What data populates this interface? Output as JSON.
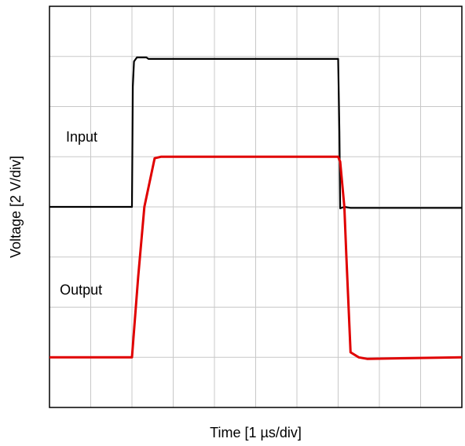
{
  "chart_data": {
    "type": "line",
    "title": "",
    "xlabel": "Time [1 µs/div]",
    "ylabel": "Voltage [2 V/div]",
    "x_unit": "div",
    "y_unit": "div",
    "xlim": [
      0,
      10
    ],
    "ylim": [
      0,
      8
    ],
    "grid": true,
    "grid_divisions": {
      "x": 10,
      "y": 8
    },
    "series": [
      {
        "name": "Input",
        "color": "#000000",
        "points": [
          [
            0,
            4.0
          ],
          [
            2.0,
            4.0
          ],
          [
            2.02,
            6.4
          ],
          [
            2.05,
            6.9
          ],
          [
            2.12,
            6.98
          ],
          [
            2.35,
            6.98
          ],
          [
            2.4,
            6.95
          ],
          [
            4.5,
            6.95
          ],
          [
            6.0,
            6.95
          ],
          [
            7.0,
            6.95
          ],
          [
            7.03,
            5.5
          ],
          [
            7.05,
            3.97
          ],
          [
            7.15,
            4.0
          ],
          [
            7.3,
            3.98
          ],
          [
            10,
            3.98
          ]
        ]
      },
      {
        "name": "Output",
        "color": "#e00000",
        "points": [
          [
            0,
            1.0
          ],
          [
            2.0,
            1.0
          ],
          [
            2.15,
            2.6
          ],
          [
            2.3,
            4.0
          ],
          [
            2.55,
            4.97
          ],
          [
            2.7,
            5.0
          ],
          [
            7.0,
            5.0
          ],
          [
            7.05,
            4.9
          ],
          [
            7.15,
            4.0
          ],
          [
            7.2,
            3.0
          ],
          [
            7.3,
            1.1
          ],
          [
            7.5,
            1.0
          ],
          [
            7.7,
            0.97
          ],
          [
            10,
            1.0
          ]
        ]
      }
    ],
    "annotations": [
      {
        "text": "Input",
        "x": 0.4,
        "y": 5.3
      },
      {
        "text": "Output",
        "x": 0.25,
        "y": 2.25
      }
    ]
  }
}
